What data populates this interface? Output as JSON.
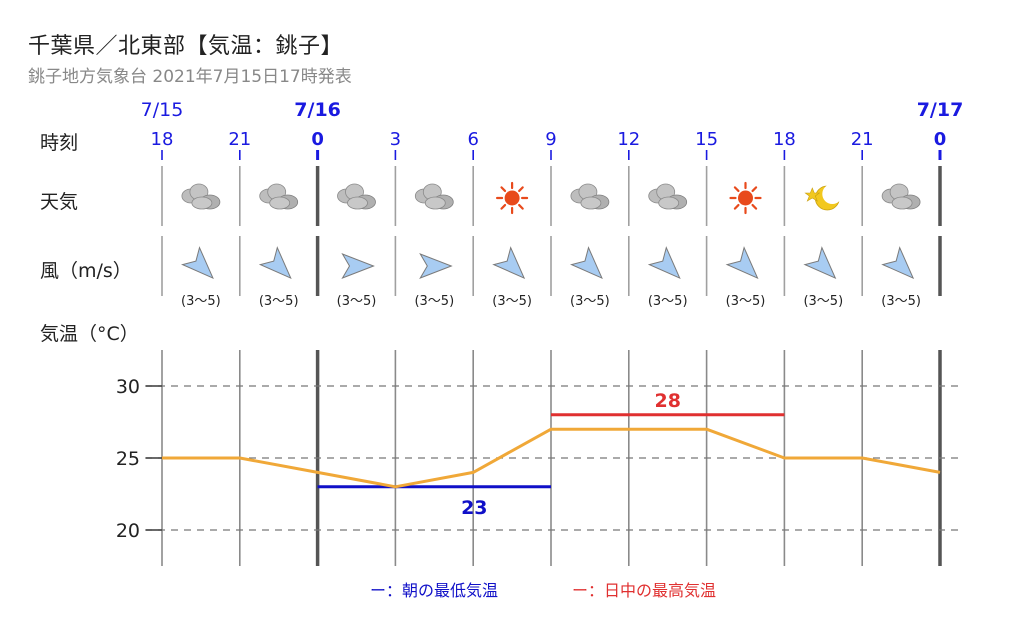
{
  "header": {
    "title": "千葉県／北東部【気温：銚子】",
    "subtitle": "銚子地方気象台 2021年7月15日17時発表"
  },
  "labels": {
    "time_row": "時刻",
    "weather_row": "天気",
    "wind_row": "風（m/s）",
    "temp_row": "気温（°C）"
  },
  "dates": [
    {
      "label": "7/15",
      "col": 0,
      "bold": false
    },
    {
      "label": "7/16",
      "col": 2,
      "bold": true
    },
    {
      "label": "7/17",
      "col": 10,
      "bold": true
    }
  ],
  "hours": [
    "18",
    "21",
    "0",
    "3",
    "6",
    "9",
    "12",
    "15",
    "18",
    "21",
    "0"
  ],
  "weather": [
    "cloudy-icon",
    "cloudy-icon",
    "cloudy-icon",
    "cloudy-icon",
    "sunny-icon",
    "cloudy-icon",
    "cloudy-icon",
    "sunny-icon",
    "clear-night-icon",
    "cloudy-icon"
  ],
  "wind": {
    "directions_deg": [
      135,
      135,
      90,
      90,
      135,
      135,
      135,
      135,
      135,
      135
    ],
    "speeds": [
      "(3〜5)",
      "(3〜5)",
      "(3〜5)",
      "(3〜5)",
      "(3〜5)",
      "(3〜5)",
      "(3〜5)",
      "(3〜5)",
      "(3〜5)",
      "(3〜5)"
    ]
  },
  "chart_data": {
    "type": "line",
    "x": [
      "7/15 18",
      "7/15 21",
      "7/16 0",
      "7/16 3",
      "7/16 6",
      "7/16 9",
      "7/16 12",
      "7/16 15",
      "7/16 18",
      "7/16 21",
      "7/17 0"
    ],
    "series": [
      {
        "values": [
          25,
          25,
          24,
          23,
          24,
          27,
          27,
          27,
          25,
          25,
          24
        ],
        "color": "#f0a838"
      }
    ],
    "yticks": [
      20,
      25,
      30
    ],
    "ylim": [
      17.5,
      32.5
    ],
    "ylabel": "気温（°C）",
    "min_temp": {
      "value": 23,
      "label": "23",
      "from_col": 2,
      "to_col": 5,
      "color": "#1010c8"
    },
    "max_temp": {
      "value": 28,
      "label": "28",
      "from_col": 5,
      "to_col": 8,
      "color": "#e03030"
    },
    "legend": [
      {
        "label": "ー：朝の最低気温",
        "color": "#1010c8"
      },
      {
        "label": "ー：日中の最高気温",
        "color": "#e03030"
      }
    ],
    "legend_position": "bottom-center"
  },
  "colors": {
    "date_blue": "#1a1ae0",
    "grid_dark": "#555555",
    "grid_light": "#a0a0a0",
    "arrow_fill": "#a8ccf2",
    "arrow_stroke": "#7a7a7a"
  }
}
